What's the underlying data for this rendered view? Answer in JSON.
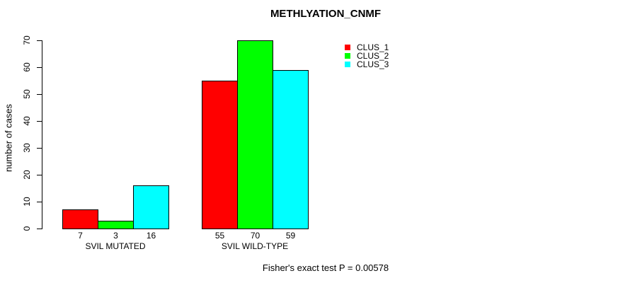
{
  "title": "METHLYATION_CNMF",
  "y_axis": {
    "label": "number of cases",
    "ticks": [
      "0",
      "10",
      "20",
      "30",
      "40",
      "50",
      "60",
      "70"
    ]
  },
  "groups": [
    {
      "label": "SVIL MUTATED",
      "bar_labels": [
        "7",
        "3",
        "16"
      ]
    },
    {
      "label": "SVIL WILD-TYPE",
      "bar_labels": [
        "55",
        "70",
        "59"
      ]
    }
  ],
  "legend": [
    {
      "label": "CLUS_1",
      "color": "#ff0000"
    },
    {
      "label": "CLUS_2",
      "color": "#00ff00"
    },
    {
      "label": "CLUS_3",
      "color": "#00ffff"
    }
  ],
  "footer": "Fisher's exact test P = 0.00578",
  "chart_data": {
    "type": "bar",
    "title": "METHLYATION_CNMF",
    "xlabel": "",
    "ylabel": "number of cases",
    "categories": [
      "SVIL MUTATED",
      "SVIL WILD-TYPE"
    ],
    "series": [
      {
        "name": "CLUS_1",
        "color": "#ff0000",
        "values": [
          7,
          55
        ]
      },
      {
        "name": "CLUS_2",
        "color": "#00ff00",
        "values": [
          3,
          70
        ]
      },
      {
        "name": "CLUS_3",
        "color": "#00ffff",
        "values": [
          16,
          59
        ]
      }
    ],
    "ylim": [
      0,
      70
    ],
    "yticks": [
      0,
      10,
      20,
      30,
      40,
      50,
      60,
      70
    ],
    "grid": false,
    "bar_value_labels": true,
    "legend_position": "inside-top-right",
    "annotation": "Fisher's exact test P = 0.00578"
  }
}
